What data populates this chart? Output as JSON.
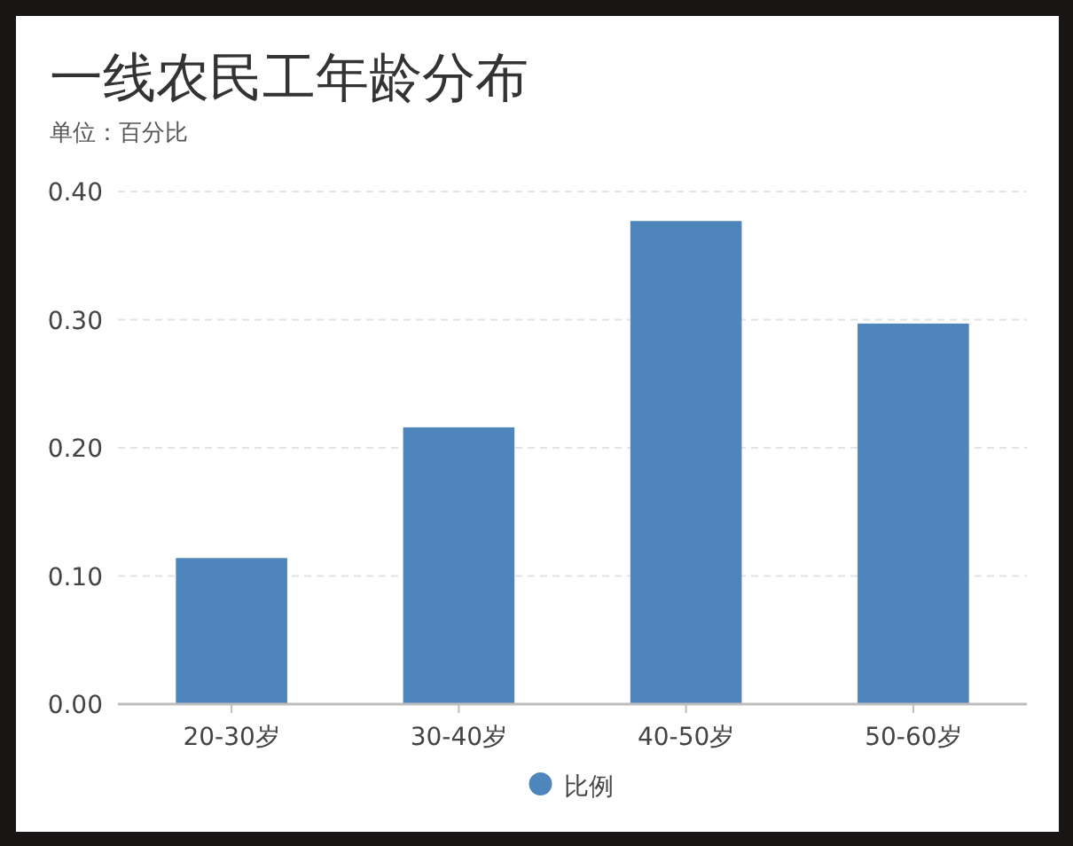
{
  "chart_data": {
    "type": "bar",
    "title": "一线农民工年龄分布",
    "subtitle": "单位：百分比",
    "categories": [
      "20-30岁",
      "30-40岁",
      "40-50岁",
      "50-60岁"
    ],
    "series": [
      {
        "name": "比例",
        "color": "#4e86bc",
        "values": [
          0.114,
          0.216,
          0.377,
          0.297
        ]
      }
    ],
    "ylim": [
      0,
      0.4
    ],
    "yticks": [
      {
        "value": 0,
        "label": "0.00"
      },
      {
        "value": 0.1,
        "label": "0.10"
      },
      {
        "value": 0.2,
        "label": "0.20"
      },
      {
        "value": 0.3,
        "label": "0.30"
      },
      {
        "value": 0.4,
        "label": "0.40"
      }
    ],
    "grid": "y",
    "legend": "bottom"
  }
}
